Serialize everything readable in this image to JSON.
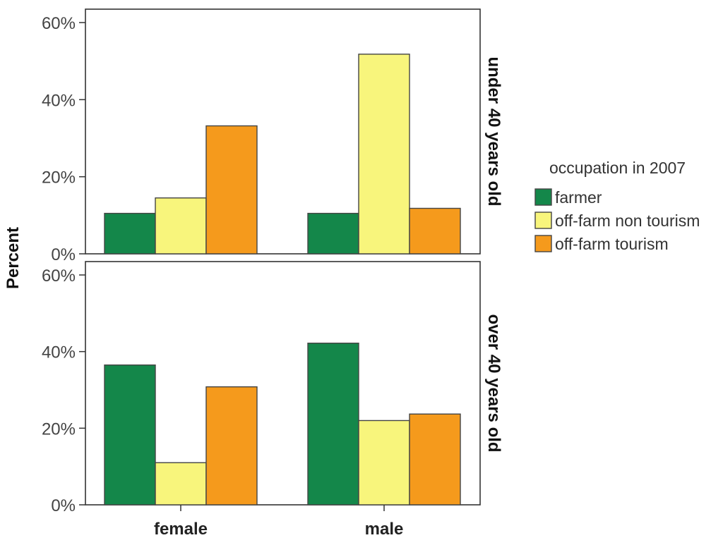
{
  "chart_data": {
    "type": "bar",
    "ylabel": "Percent",
    "ylim": [
      0,
      60
    ],
    "yticks": [
      "0%",
      "20%",
      "40%",
      "60%"
    ],
    "categories": [
      "female",
      "male"
    ],
    "legend": {
      "title": "occupation in 2007",
      "position": "right",
      "entries": [
        {
          "name": "farmer",
          "color": "#14874a"
        },
        {
          "name": "off-farm non tourism",
          "color": "#f8f57c"
        },
        {
          "name": "off-farm tourism",
          "color": "#f59a1c"
        }
      ]
    },
    "panels": [
      {
        "label": "under 40 years old",
        "series": [
          {
            "name": "farmer",
            "values": [
              10.5,
              10.5
            ]
          },
          {
            "name": "off-farm non tourism",
            "values": [
              14.5,
              51.8
            ]
          },
          {
            "name": "off-farm tourism",
            "values": [
              33.2,
              11.8
            ]
          }
        ]
      },
      {
        "label": "over 40 years old",
        "series": [
          {
            "name": "farmer",
            "values": [
              36.5,
              42.2
            ]
          },
          {
            "name": "off-farm non tourism",
            "values": [
              11.0,
              22.0
            ]
          },
          {
            "name": "off-farm tourism",
            "values": [
              30.8,
              23.7
            ]
          }
        ]
      }
    ]
  }
}
